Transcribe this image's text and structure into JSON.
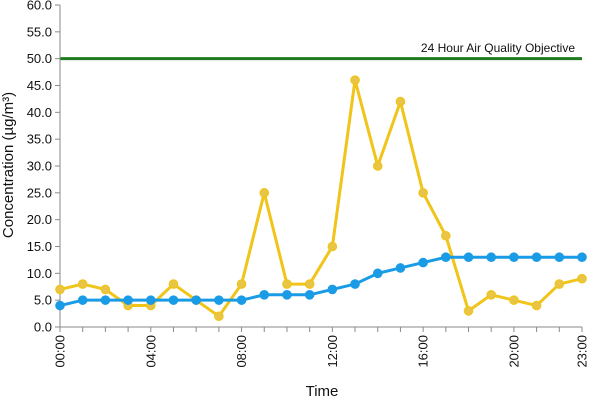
{
  "chart_data": {
    "type": "line",
    "xlabel": "Time",
    "ylabel": "Concentration (µg/m³)",
    "ylim": [
      0,
      60
    ],
    "y_ticks": [
      "0.0",
      "5.0",
      "10.0",
      "15.0",
      "20.0",
      "25.0",
      "30.0",
      "35.0",
      "40.0",
      "45.0",
      "50.0",
      "55.0",
      "60.0"
    ],
    "x_tick_labels": [
      "00:00",
      "04:00",
      "08:00",
      "12:00",
      "16:00",
      "20:00",
      "23:00"
    ],
    "x_tick_hours": [
      0,
      4,
      8,
      12,
      16,
      20,
      23
    ],
    "x_hours": [
      0,
      1,
      2,
      3,
      4,
      5,
      6,
      7,
      8,
      9,
      10,
      11,
      12,
      13,
      14,
      15,
      16,
      17,
      18,
      19,
      20,
      21,
      22,
      23
    ],
    "grid": false,
    "reference_line": {
      "label": "24 Hour Air Quality Objective",
      "value": 50,
      "color": "#1e7b1e"
    },
    "series": [
      {
        "color": "#f0c419",
        "marker_fill": "#e8c547",
        "values": [
          7,
          8,
          7,
          4,
          4,
          8,
          5,
          2,
          8,
          25,
          8,
          8,
          15,
          46,
          30,
          42,
          25,
          17,
          3,
          6,
          5,
          4,
          8,
          9
        ]
      },
      {
        "color": "#1a9be6",
        "marker_fill": "#1a9be6",
        "values": [
          4,
          5,
          5,
          5,
          5,
          5,
          5,
          5,
          5,
          6,
          6,
          6,
          7,
          8,
          10,
          11,
          12,
          13,
          13,
          13,
          13,
          13,
          13,
          13
        ]
      }
    ]
  }
}
